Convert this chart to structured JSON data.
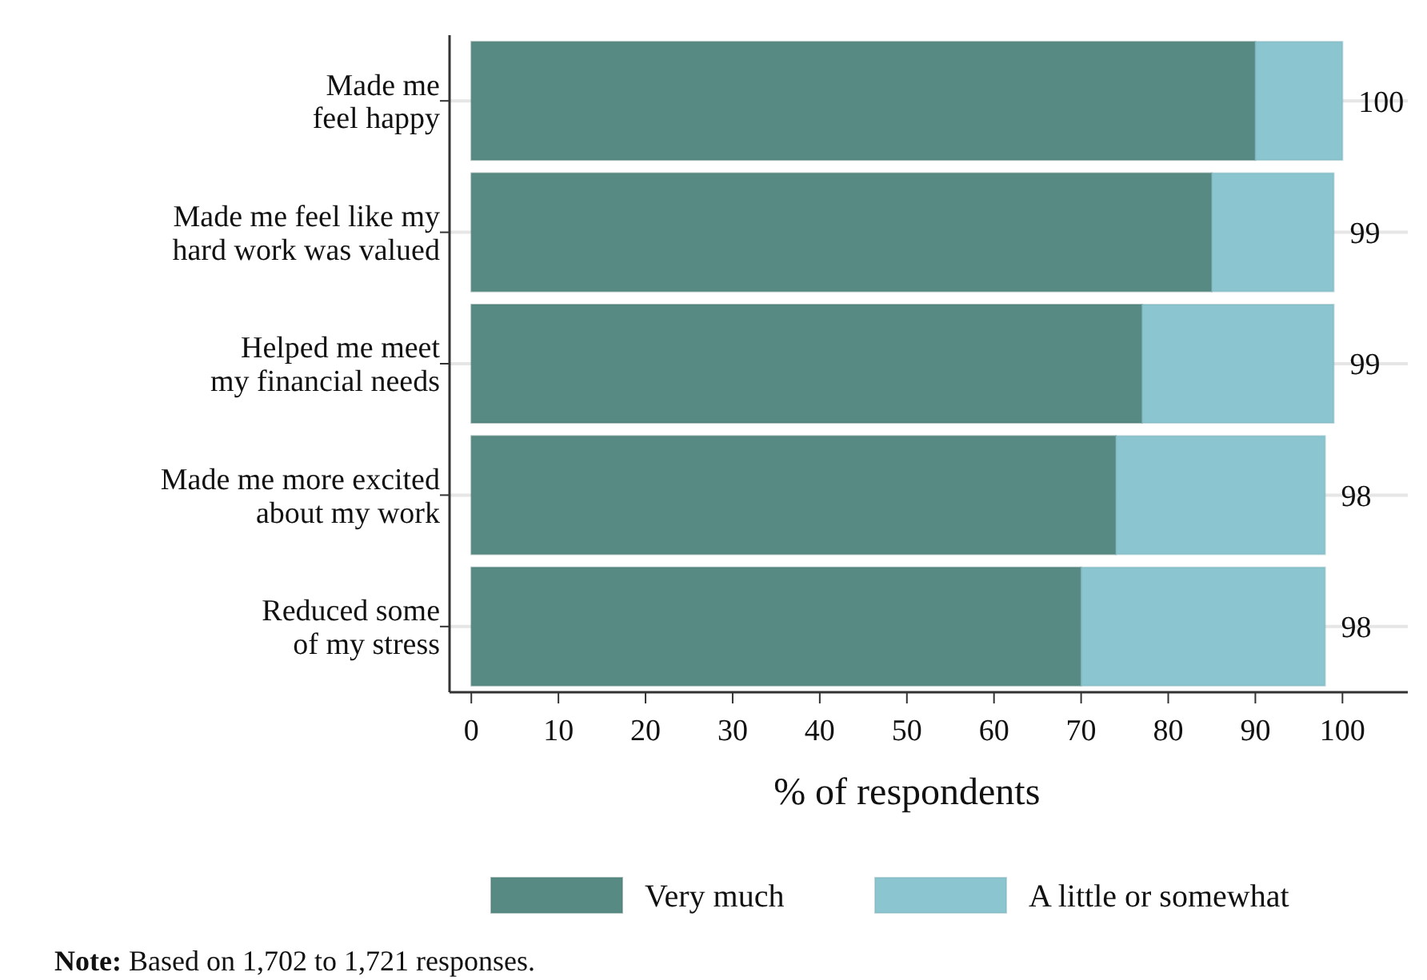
{
  "chart_data": {
    "type": "bar",
    "orientation": "horizontal",
    "stacked": true,
    "categories": [
      "Made me\nfeel happy",
      "Made me feel like my\nhard work was valued",
      "Helped me meet\nmy financial needs",
      "Made me more excited\nabout my work",
      "Reduced some\nof my stress"
    ],
    "series": [
      {
        "name": "Very much",
        "color": "#568a82",
        "values": [
          90,
          85,
          77,
          74,
          70
        ]
      },
      {
        "name": "A little or somewhat",
        "color": "#8ac5d0",
        "values": [
          10,
          14,
          22,
          24,
          28
        ]
      }
    ],
    "totals": [
      "100",
      "99",
      "99",
      "98",
      "98"
    ],
    "xlabel": "% of respondents",
    "xlim": [
      -2.5,
      107.5
    ],
    "xticks": [
      0,
      10,
      20,
      30,
      40,
      50,
      60,
      70,
      80,
      90,
      100
    ],
    "grid": "y",
    "legend": "bottom",
    "annotations": [
      "Note: Based on 1,702 to 1,721 responses."
    ]
  }
}
